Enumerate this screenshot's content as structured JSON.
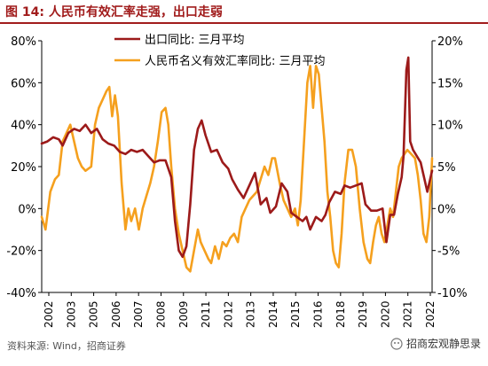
{
  "figure": {
    "title": "图 14:  人民币有效汇率走强，出口走弱",
    "source": "资料来源:  Wind，招商证券",
    "watermark": "招商宏观静思录"
  },
  "colors": {
    "title": "#a11c1c",
    "export_series": "#9c1a1a",
    "rate_series": "#f5a01e",
    "axis": "#000000"
  },
  "chart_data": {
    "type": "line",
    "xlabel": "",
    "ylabel": "",
    "x_ticks": [
      "2002",
      "2003",
      "2005",
      "2006",
      "2007",
      "2008",
      "2009",
      "2011",
      "2012",
      "2013",
      "2014",
      "2015",
      "2016",
      "2018",
      "2019",
      "2020",
      "2021",
      "2022"
    ],
    "xlim": [
      2002.0,
      2022.5
    ],
    "left_axis": {
      "ylim": [
        -40,
        80
      ],
      "ticks": [
        -40,
        -20,
        0,
        20,
        40,
        60,
        80
      ],
      "tick_labels": [
        "-40%",
        "-20%",
        "0%",
        "20%",
        "40%",
        "60%",
        "80%"
      ]
    },
    "right_axis": {
      "ylim": [
        -10,
        20
      ],
      "ticks": [
        -10,
        -5,
        0,
        5,
        10,
        15,
        20
      ],
      "tick_labels": [
        "-10%",
        "-5%",
        "0%",
        "5%",
        "10%",
        "15%",
        "20%"
      ]
    },
    "legend_position": "top-right",
    "series": [
      {
        "name": "出口同比:  三月平均",
        "axis": "left",
        "points": [
          [
            2002.0,
            31
          ],
          [
            2002.3,
            32
          ],
          [
            2002.6,
            34
          ],
          [
            2002.9,
            33
          ],
          [
            2003.1,
            30
          ],
          [
            2003.4,
            36
          ],
          [
            2003.7,
            38
          ],
          [
            2004.0,
            37
          ],
          [
            2004.3,
            40
          ],
          [
            2004.6,
            36
          ],
          [
            2004.9,
            38
          ],
          [
            2005.2,
            33
          ],
          [
            2005.5,
            31
          ],
          [
            2005.8,
            30
          ],
          [
            2006.1,
            27
          ],
          [
            2006.4,
            26
          ],
          [
            2006.7,
            28
          ],
          [
            2007.0,
            27
          ],
          [
            2007.3,
            28
          ],
          [
            2007.6,
            25
          ],
          [
            2007.9,
            22
          ],
          [
            2008.2,
            23
          ],
          [
            2008.5,
            23
          ],
          [
            2008.8,
            15
          ],
          [
            2009.0,
            -6
          ],
          [
            2009.2,
            -20
          ],
          [
            2009.4,
            -23
          ],
          [
            2009.6,
            -18
          ],
          [
            2009.8,
            2
          ],
          [
            2010.0,
            28
          ],
          [
            2010.2,
            38
          ],
          [
            2010.4,
            42
          ],
          [
            2010.6,
            35
          ],
          [
            2010.9,
            27
          ],
          [
            2011.2,
            28
          ],
          [
            2011.5,
            22
          ],
          [
            2011.8,
            19
          ],
          [
            2012.0,
            14
          ],
          [
            2012.3,
            9
          ],
          [
            2012.6,
            5
          ],
          [
            2012.9,
            11
          ],
          [
            2013.2,
            17
          ],
          [
            2013.5,
            2
          ],
          [
            2013.8,
            5
          ],
          [
            2014.0,
            -2
          ],
          [
            2014.3,
            1
          ],
          [
            2014.6,
            12
          ],
          [
            2014.9,
            8
          ],
          [
            2015.1,
            -2
          ],
          [
            2015.4,
            -4
          ],
          [
            2015.7,
            -6
          ],
          [
            2015.9,
            -4
          ],
          [
            2016.1,
            -10
          ],
          [
            2016.4,
            -4
          ],
          [
            2016.7,
            -6
          ],
          [
            2016.9,
            -3
          ],
          [
            2017.1,
            3
          ],
          [
            2017.4,
            8
          ],
          [
            2017.7,
            7
          ],
          [
            2017.9,
            11
          ],
          [
            2018.2,
            10
          ],
          [
            2018.5,
            11
          ],
          [
            2018.8,
            12
          ],
          [
            2019.0,
            2
          ],
          [
            2019.3,
            -1
          ],
          [
            2019.6,
            -1
          ],
          [
            2019.9,
            0
          ],
          [
            2020.1,
            -16
          ],
          [
            2020.3,
            -3
          ],
          [
            2020.5,
            -3
          ],
          [
            2020.7,
            7
          ],
          [
            2020.9,
            15
          ],
          [
            2021.0,
            25
          ],
          [
            2021.15,
            66
          ],
          [
            2021.25,
            72
          ],
          [
            2021.35,
            32
          ],
          [
            2021.5,
            28
          ],
          [
            2021.7,
            25
          ],
          [
            2021.9,
            22
          ],
          [
            2022.1,
            14
          ],
          [
            2022.25,
            8
          ],
          [
            2022.5,
            18
          ]
        ]
      },
      {
        "name": "人民币名义有效汇率同比:  三月平均",
        "axis": "right",
        "points": [
          [
            2002.0,
            -1
          ],
          [
            2002.2,
            -2.5
          ],
          [
            2002.45,
            2
          ],
          [
            2002.7,
            3.5
          ],
          [
            2002.9,
            4
          ],
          [
            2003.1,
            8
          ],
          [
            2003.3,
            9
          ],
          [
            2003.5,
            10
          ],
          [
            2003.7,
            8
          ],
          [
            2003.9,
            6
          ],
          [
            2004.1,
            5
          ],
          [
            2004.3,
            4.5
          ],
          [
            2004.6,
            5
          ],
          [
            2004.8,
            10
          ],
          [
            2005.0,
            12
          ],
          [
            2005.2,
            13
          ],
          [
            2005.4,
            14
          ],
          [
            2005.55,
            14.5
          ],
          [
            2005.7,
            11
          ],
          [
            2005.85,
            13.5
          ],
          [
            2006.0,
            11
          ],
          [
            2006.2,
            3
          ],
          [
            2006.4,
            -2.5
          ],
          [
            2006.55,
            0
          ],
          [
            2006.7,
            -1.5
          ],
          [
            2006.9,
            0
          ],
          [
            2007.1,
            -2.5
          ],
          [
            2007.3,
            0
          ],
          [
            2007.5,
            1.5
          ],
          [
            2007.7,
            3
          ],
          [
            2007.9,
            5
          ],
          [
            2008.1,
            8
          ],
          [
            2008.3,
            11.5
          ],
          [
            2008.5,
            12
          ],
          [
            2008.65,
            10
          ],
          [
            2008.8,
            5
          ],
          [
            2009.0,
            0
          ],
          [
            2009.2,
            -3
          ],
          [
            2009.4,
            -5
          ],
          [
            2009.6,
            -7
          ],
          [
            2009.8,
            -7.5
          ],
          [
            2010.0,
            -5
          ],
          [
            2010.2,
            -2.5
          ],
          [
            2010.35,
            -4
          ],
          [
            2010.55,
            -5
          ],
          [
            2010.75,
            -6
          ],
          [
            2010.9,
            -6.5
          ],
          [
            2011.1,
            -4.5
          ],
          [
            2011.3,
            -6
          ],
          [
            2011.5,
            -4
          ],
          [
            2011.7,
            -4.5
          ],
          [
            2011.9,
            -3.5
          ],
          [
            2012.1,
            -3
          ],
          [
            2012.3,
            -4
          ],
          [
            2012.5,
            -1
          ],
          [
            2012.7,
            0
          ],
          [
            2012.9,
            1
          ],
          [
            2013.1,
            1.5
          ],
          [
            2013.3,
            2
          ],
          [
            2013.5,
            3.5
          ],
          [
            2013.7,
            5
          ],
          [
            2013.9,
            4
          ],
          [
            2014.1,
            6
          ],
          [
            2014.25,
            6
          ],
          [
            2014.5,
            3
          ],
          [
            2014.7,
            1
          ],
          [
            2014.9,
            0
          ],
          [
            2015.1,
            -1
          ],
          [
            2015.3,
            0
          ],
          [
            2015.45,
            -2
          ],
          [
            2015.6,
            1
          ],
          [
            2015.8,
            9
          ],
          [
            2015.95,
            15
          ],
          [
            2016.1,
            17
          ],
          [
            2016.25,
            12
          ],
          [
            2016.4,
            17
          ],
          [
            2016.55,
            16
          ],
          [
            2016.7,
            12
          ],
          [
            2016.85,
            8
          ],
          [
            2017.0,
            2
          ],
          [
            2017.15,
            -1
          ],
          [
            2017.3,
            -5
          ],
          [
            2017.45,
            -6.5
          ],
          [
            2017.6,
            -7
          ],
          [
            2017.75,
            -3
          ],
          [
            2017.9,
            3
          ],
          [
            2018.1,
            7
          ],
          [
            2018.3,
            7
          ],
          [
            2018.5,
            5
          ],
          [
            2018.7,
            0
          ],
          [
            2018.9,
            -4
          ],
          [
            2019.1,
            -6
          ],
          [
            2019.25,
            -6.5
          ],
          [
            2019.4,
            -4
          ],
          [
            2019.55,
            -2
          ],
          [
            2019.7,
            -1
          ],
          [
            2019.85,
            -3
          ],
          [
            2020.0,
            -4
          ],
          [
            2020.15,
            -2
          ],
          [
            2020.3,
            0
          ],
          [
            2020.45,
            -1
          ],
          [
            2020.6,
            2
          ],
          [
            2020.75,
            5
          ],
          [
            2020.9,
            6
          ],
          [
            2021.05,
            6.5
          ],
          [
            2021.2,
            7
          ],
          [
            2021.4,
            6.5
          ],
          [
            2021.6,
            6
          ],
          [
            2021.75,
            4
          ],
          [
            2021.9,
            1
          ],
          [
            2022.05,
            -3
          ],
          [
            2022.2,
            -4
          ],
          [
            2022.35,
            -1
          ],
          [
            2022.5,
            6
          ]
        ]
      }
    ]
  }
}
